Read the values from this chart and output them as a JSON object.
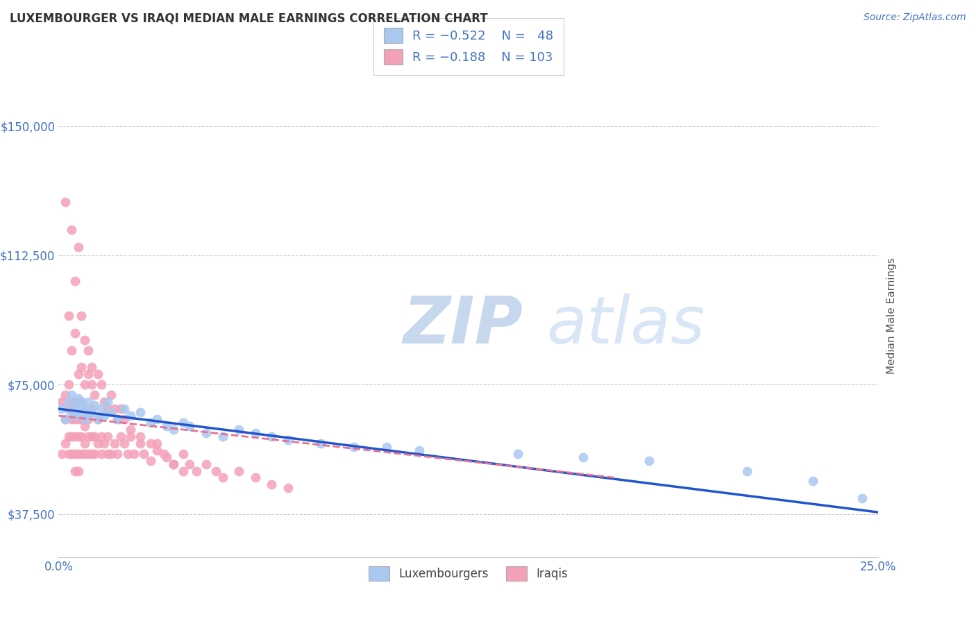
{
  "title": "LUXEMBOURGER VS IRAQI MEDIAN MALE EARNINGS CORRELATION CHART",
  "source_text": "Source: ZipAtlas.com",
  "ylabel": "Median Male Earnings",
  "xlim": [
    0.0,
    0.25
  ],
  "ylim": [
    25000,
    165000
  ],
  "xtick_positions": [
    0.0,
    0.25
  ],
  "xtick_labels": [
    "0.0%",
    "25.0%"
  ],
  "yticks": [
    37500,
    75000,
    112500,
    150000
  ],
  "ytick_labels": [
    "$37,500",
    "$75,000",
    "$112,500",
    "$150,000"
  ],
  "background_color": "#ffffff",
  "grid_color": "#cccccc",
  "title_color": "#333333",
  "axis_color": "#4472c4",
  "watermark": "ZIPatlas",
  "watermark_color": "#c8daf5",
  "lux_color": "#a8c8f0",
  "iraqi_color": "#f4a0b8",
  "lux_line_color": "#2255cc",
  "iraqi_line_color": "#e87090",
  "lux_R": -0.522,
  "lux_N": 48,
  "iraqi_R": -0.188,
  "iraqi_N": 103,
  "lux_scatter_x": [
    0.001,
    0.002,
    0.003,
    0.004,
    0.004,
    0.005,
    0.005,
    0.006,
    0.006,
    0.007,
    0.007,
    0.008,
    0.008,
    0.009,
    0.009,
    0.01,
    0.011,
    0.012,
    0.013,
    0.014,
    0.015,
    0.016,
    0.018,
    0.02,
    0.022,
    0.025,
    0.028,
    0.03,
    0.033,
    0.035,
    0.038,
    0.04,
    0.045,
    0.05,
    0.055,
    0.06,
    0.065,
    0.07,
    0.08,
    0.09,
    0.1,
    0.11,
    0.14,
    0.16,
    0.18,
    0.21,
    0.23,
    0.245
  ],
  "lux_scatter_y": [
    68000,
    65000,
    70000,
    67000,
    72000,
    66000,
    69000,
    68000,
    71000,
    67000,
    70000,
    65000,
    68000,
    66000,
    70000,
    67000,
    69000,
    65000,
    68000,
    66000,
    70000,
    67000,
    65000,
    68000,
    66000,
    67000,
    64000,
    65000,
    63000,
    62000,
    64000,
    63000,
    61000,
    60000,
    62000,
    61000,
    60000,
    59000,
    58000,
    57000,
    57000,
    56000,
    55000,
    54000,
    53000,
    50000,
    47000,
    42000
  ],
  "iraqi_scatter_x": [
    0.001,
    0.001,
    0.002,
    0.002,
    0.002,
    0.003,
    0.003,
    0.003,
    0.003,
    0.004,
    0.004,
    0.004,
    0.004,
    0.005,
    0.005,
    0.005,
    0.005,
    0.005,
    0.006,
    0.006,
    0.006,
    0.006,
    0.006,
    0.007,
    0.007,
    0.007,
    0.007,
    0.008,
    0.008,
    0.008,
    0.008,
    0.009,
    0.009,
    0.009,
    0.01,
    0.01,
    0.01,
    0.011,
    0.011,
    0.012,
    0.012,
    0.013,
    0.013,
    0.014,
    0.015,
    0.015,
    0.016,
    0.017,
    0.018,
    0.019,
    0.02,
    0.021,
    0.022,
    0.023,
    0.025,
    0.026,
    0.028,
    0.03,
    0.032,
    0.035,
    0.038,
    0.04,
    0.042,
    0.045,
    0.048,
    0.05,
    0.055,
    0.06,
    0.065,
    0.07,
    0.002,
    0.003,
    0.004,
    0.004,
    0.005,
    0.005,
    0.006,
    0.006,
    0.007,
    0.007,
    0.008,
    0.008,
    0.009,
    0.009,
    0.01,
    0.01,
    0.011,
    0.012,
    0.013,
    0.014,
    0.015,
    0.016,
    0.017,
    0.018,
    0.019,
    0.02,
    0.022,
    0.025,
    0.028,
    0.03,
    0.033,
    0.035,
    0.038
  ],
  "iraqi_scatter_y": [
    55000,
    70000,
    58000,
    65000,
    72000,
    60000,
    55000,
    68000,
    75000,
    60000,
    65000,
    70000,
    55000,
    60000,
    65000,
    70000,
    55000,
    50000,
    65000,
    60000,
    55000,
    70000,
    50000,
    60000,
    65000,
    55000,
    70000,
    58000,
    63000,
    55000,
    68000,
    60000,
    55000,
    65000,
    60000,
    55000,
    68000,
    60000,
    55000,
    58000,
    65000,
    55000,
    60000,
    58000,
    55000,
    60000,
    55000,
    58000,
    55000,
    60000,
    58000,
    55000,
    60000,
    55000,
    58000,
    55000,
    53000,
    58000,
    55000,
    52000,
    55000,
    52000,
    50000,
    52000,
    50000,
    48000,
    50000,
    48000,
    46000,
    45000,
    128000,
    95000,
    120000,
    85000,
    90000,
    105000,
    78000,
    115000,
    80000,
    95000,
    75000,
    88000,
    78000,
    85000,
    75000,
    80000,
    72000,
    78000,
    75000,
    70000,
    68000,
    72000,
    68000,
    65000,
    68000,
    65000,
    62000,
    60000,
    58000,
    56000,
    54000,
    52000,
    50000
  ]
}
